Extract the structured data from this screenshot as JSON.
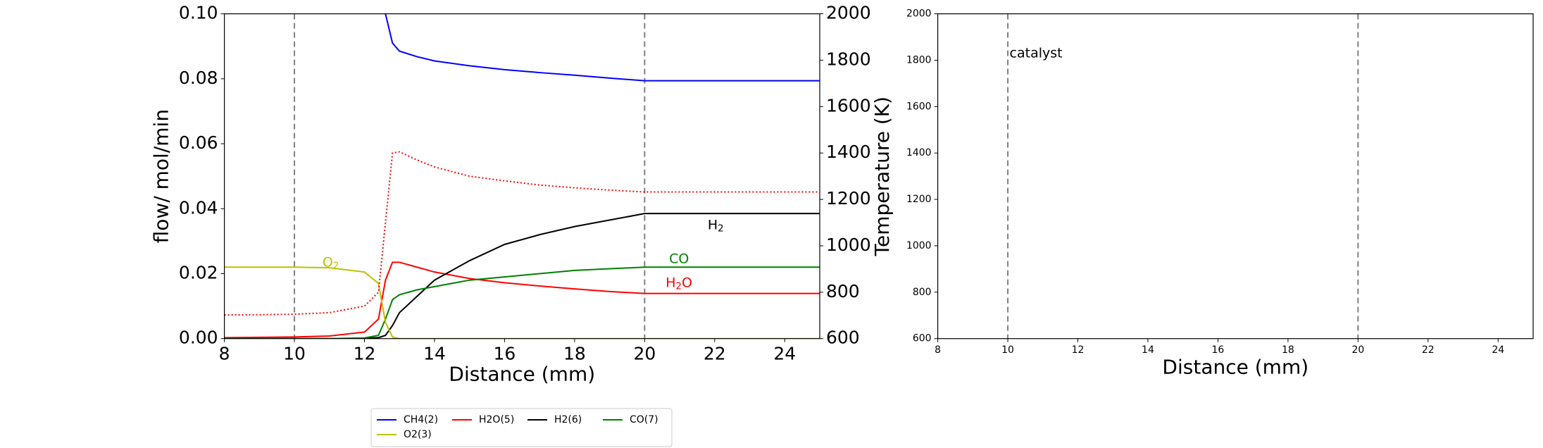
{
  "chart_data": [
    {
      "type": "line",
      "x": [
        8,
        9,
        10,
        11,
        12,
        12.4,
        12.6,
        12.8,
        13,
        13.5,
        14,
        15,
        16,
        17,
        18,
        19,
        20,
        21,
        22,
        23,
        24,
        25
      ],
      "series": [
        {
          "name": "CH4(2)",
          "color": "#0000ff",
          "values": [
            null,
            null,
            null,
            null,
            null,
            null,
            0.1,
            0.091,
            0.0885,
            0.0868,
            0.0855,
            0.084,
            0.0828,
            0.0819,
            0.0811,
            0.0802,
            0.0794,
            0.0794,
            0.0794,
            0.0794,
            0.0794,
            0.0794
          ]
        },
        {
          "name": "H2O(5)",
          "color": "#ff0000",
          "values": [
            0.0003,
            0.0004,
            0.0005,
            0.0008,
            0.002,
            0.006,
            0.018,
            0.0235,
            0.0235,
            0.022,
            0.0205,
            0.0185,
            0.0172,
            0.0162,
            0.0153,
            0.0145,
            0.0139,
            0.0139,
            0.0139,
            0.0139,
            0.0139,
            0.0139
          ]
        },
        {
          "name": "H2(6)",
          "color": "#000000",
          "values": [
            0,
            0,
            0,
            0,
            0.0001,
            0.0003,
            0.001,
            0.004,
            0.008,
            0.013,
            0.018,
            0.024,
            0.029,
            0.032,
            0.0345,
            0.0365,
            0.0385,
            0.0385,
            0.0385,
            0.0385,
            0.0385,
            0.0385
          ]
        },
        {
          "name": "CO(7)",
          "color": "#008000",
          "values": [
            0,
            0,
            0,
            0,
            0.0002,
            0.001,
            0.006,
            0.012,
            0.0135,
            0.015,
            0.016,
            0.018,
            0.019,
            0.02,
            0.021,
            0.0215,
            0.022,
            0.022,
            0.022,
            0.022,
            0.022,
            0.022
          ]
        },
        {
          "name": "O2(3)",
          "color": "#bfbf00",
          "values": [
            0.022,
            0.022,
            0.022,
            0.0218,
            0.0205,
            0.017,
            0.005,
            0.0005,
            0,
            0,
            0,
            0,
            0,
            0,
            0,
            0,
            0,
            0,
            0,
            0,
            0,
            0
          ]
        },
        {
          "color": "#ff0000",
          "style": "dotted",
          "axis": "y2",
          "values": [
            702,
            703,
            705,
            712,
            740,
            800,
            1100,
            1400,
            1405,
            1370,
            1340,
            1300,
            1280,
            1262,
            1250,
            1240,
            1232,
            1232,
            1232,
            1232,
            1232,
            1232
          ]
        }
      ],
      "xlabel": "Distance (mm)",
      "ylabel": "flow/ mol/min",
      "y2label": "Temperature (K)",
      "xlim": [
        8,
        25
      ],
      "xticks": [
        8,
        10,
        12,
        14,
        16,
        18,
        20,
        22,
        24
      ],
      "ylim": [
        0,
        0.1
      ],
      "yticks": [
        {
          "value": 0,
          "label": "0.00"
        },
        {
          "value": 0.02,
          "label": "0.02"
        },
        {
          "value": 0.04,
          "label": "0.04"
        },
        {
          "value": 0.06,
          "label": "0.06"
        },
        {
          "value": 0.08,
          "label": "0.08"
        },
        {
          "value": 0.1,
          "label": "0.10"
        }
      ],
      "y2lim": [
        600,
        2000
      ],
      "y2ticks": [
        600,
        800,
        1000,
        1200,
        1400,
        1600,
        1800,
        2000
      ],
      "vlines": [
        10,
        20
      ],
      "annotations": [
        {
          "text": "O",
          "sub": "2",
          "color": "#bfbf00"
        },
        {
          "text": "CO",
          "color": "#008000"
        },
        {
          "text": "H",
          "sub": "2",
          "tail": "O",
          "color": "#ff0000"
        },
        {
          "text": "H",
          "sub": "2",
          "color": "#000000"
        }
      ],
      "legend": "below"
    },
    {
      "type": "line",
      "x": [],
      "series": [],
      "xlabel": "Distance (mm)",
      "xlim": [
        8,
        25
      ],
      "xticks": [
        8,
        10,
        12,
        14,
        16,
        18,
        20,
        22,
        24
      ],
      "ylim": [
        600,
        2000
      ],
      "yticks": [
        600,
        800,
        1000,
        1200,
        1400,
        1600,
        1800,
        2000
      ],
      "vlines": [
        10,
        20
      ],
      "annotations": [
        {
          "text": "catalyst",
          "color": "#000000"
        }
      ]
    }
  ]
}
